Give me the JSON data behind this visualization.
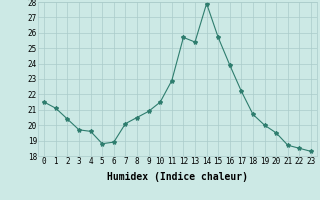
{
  "x": [
    0,
    1,
    2,
    3,
    4,
    5,
    6,
    7,
    8,
    9,
    10,
    11,
    12,
    13,
    14,
    15,
    16,
    17,
    18,
    19,
    20,
    21,
    22,
    23
  ],
  "y": [
    21.5,
    21.1,
    20.4,
    19.7,
    19.6,
    18.8,
    18.9,
    20.1,
    20.5,
    20.9,
    21.5,
    22.9,
    25.7,
    25.4,
    27.9,
    25.7,
    23.9,
    22.2,
    20.7,
    20.0,
    19.5,
    18.7,
    18.5,
    18.3
  ],
  "xlim": [
    -0.5,
    23.5
  ],
  "ylim": [
    18,
    28
  ],
  "yticks": [
    18,
    19,
    20,
    21,
    22,
    23,
    24,
    25,
    26,
    27,
    28
  ],
  "xticks": [
    0,
    1,
    2,
    3,
    4,
    5,
    6,
    7,
    8,
    9,
    10,
    11,
    12,
    13,
    14,
    15,
    16,
    17,
    18,
    19,
    20,
    21,
    22,
    23
  ],
  "xlabel": "Humidex (Indice chaleur)",
  "line_color": "#2e7d6e",
  "marker": "*",
  "marker_size": 3,
  "bg_color": "#cce9e5",
  "grid_color": "#aaccca",
  "xlabel_fontsize": 7,
  "tick_fontsize": 5.5
}
